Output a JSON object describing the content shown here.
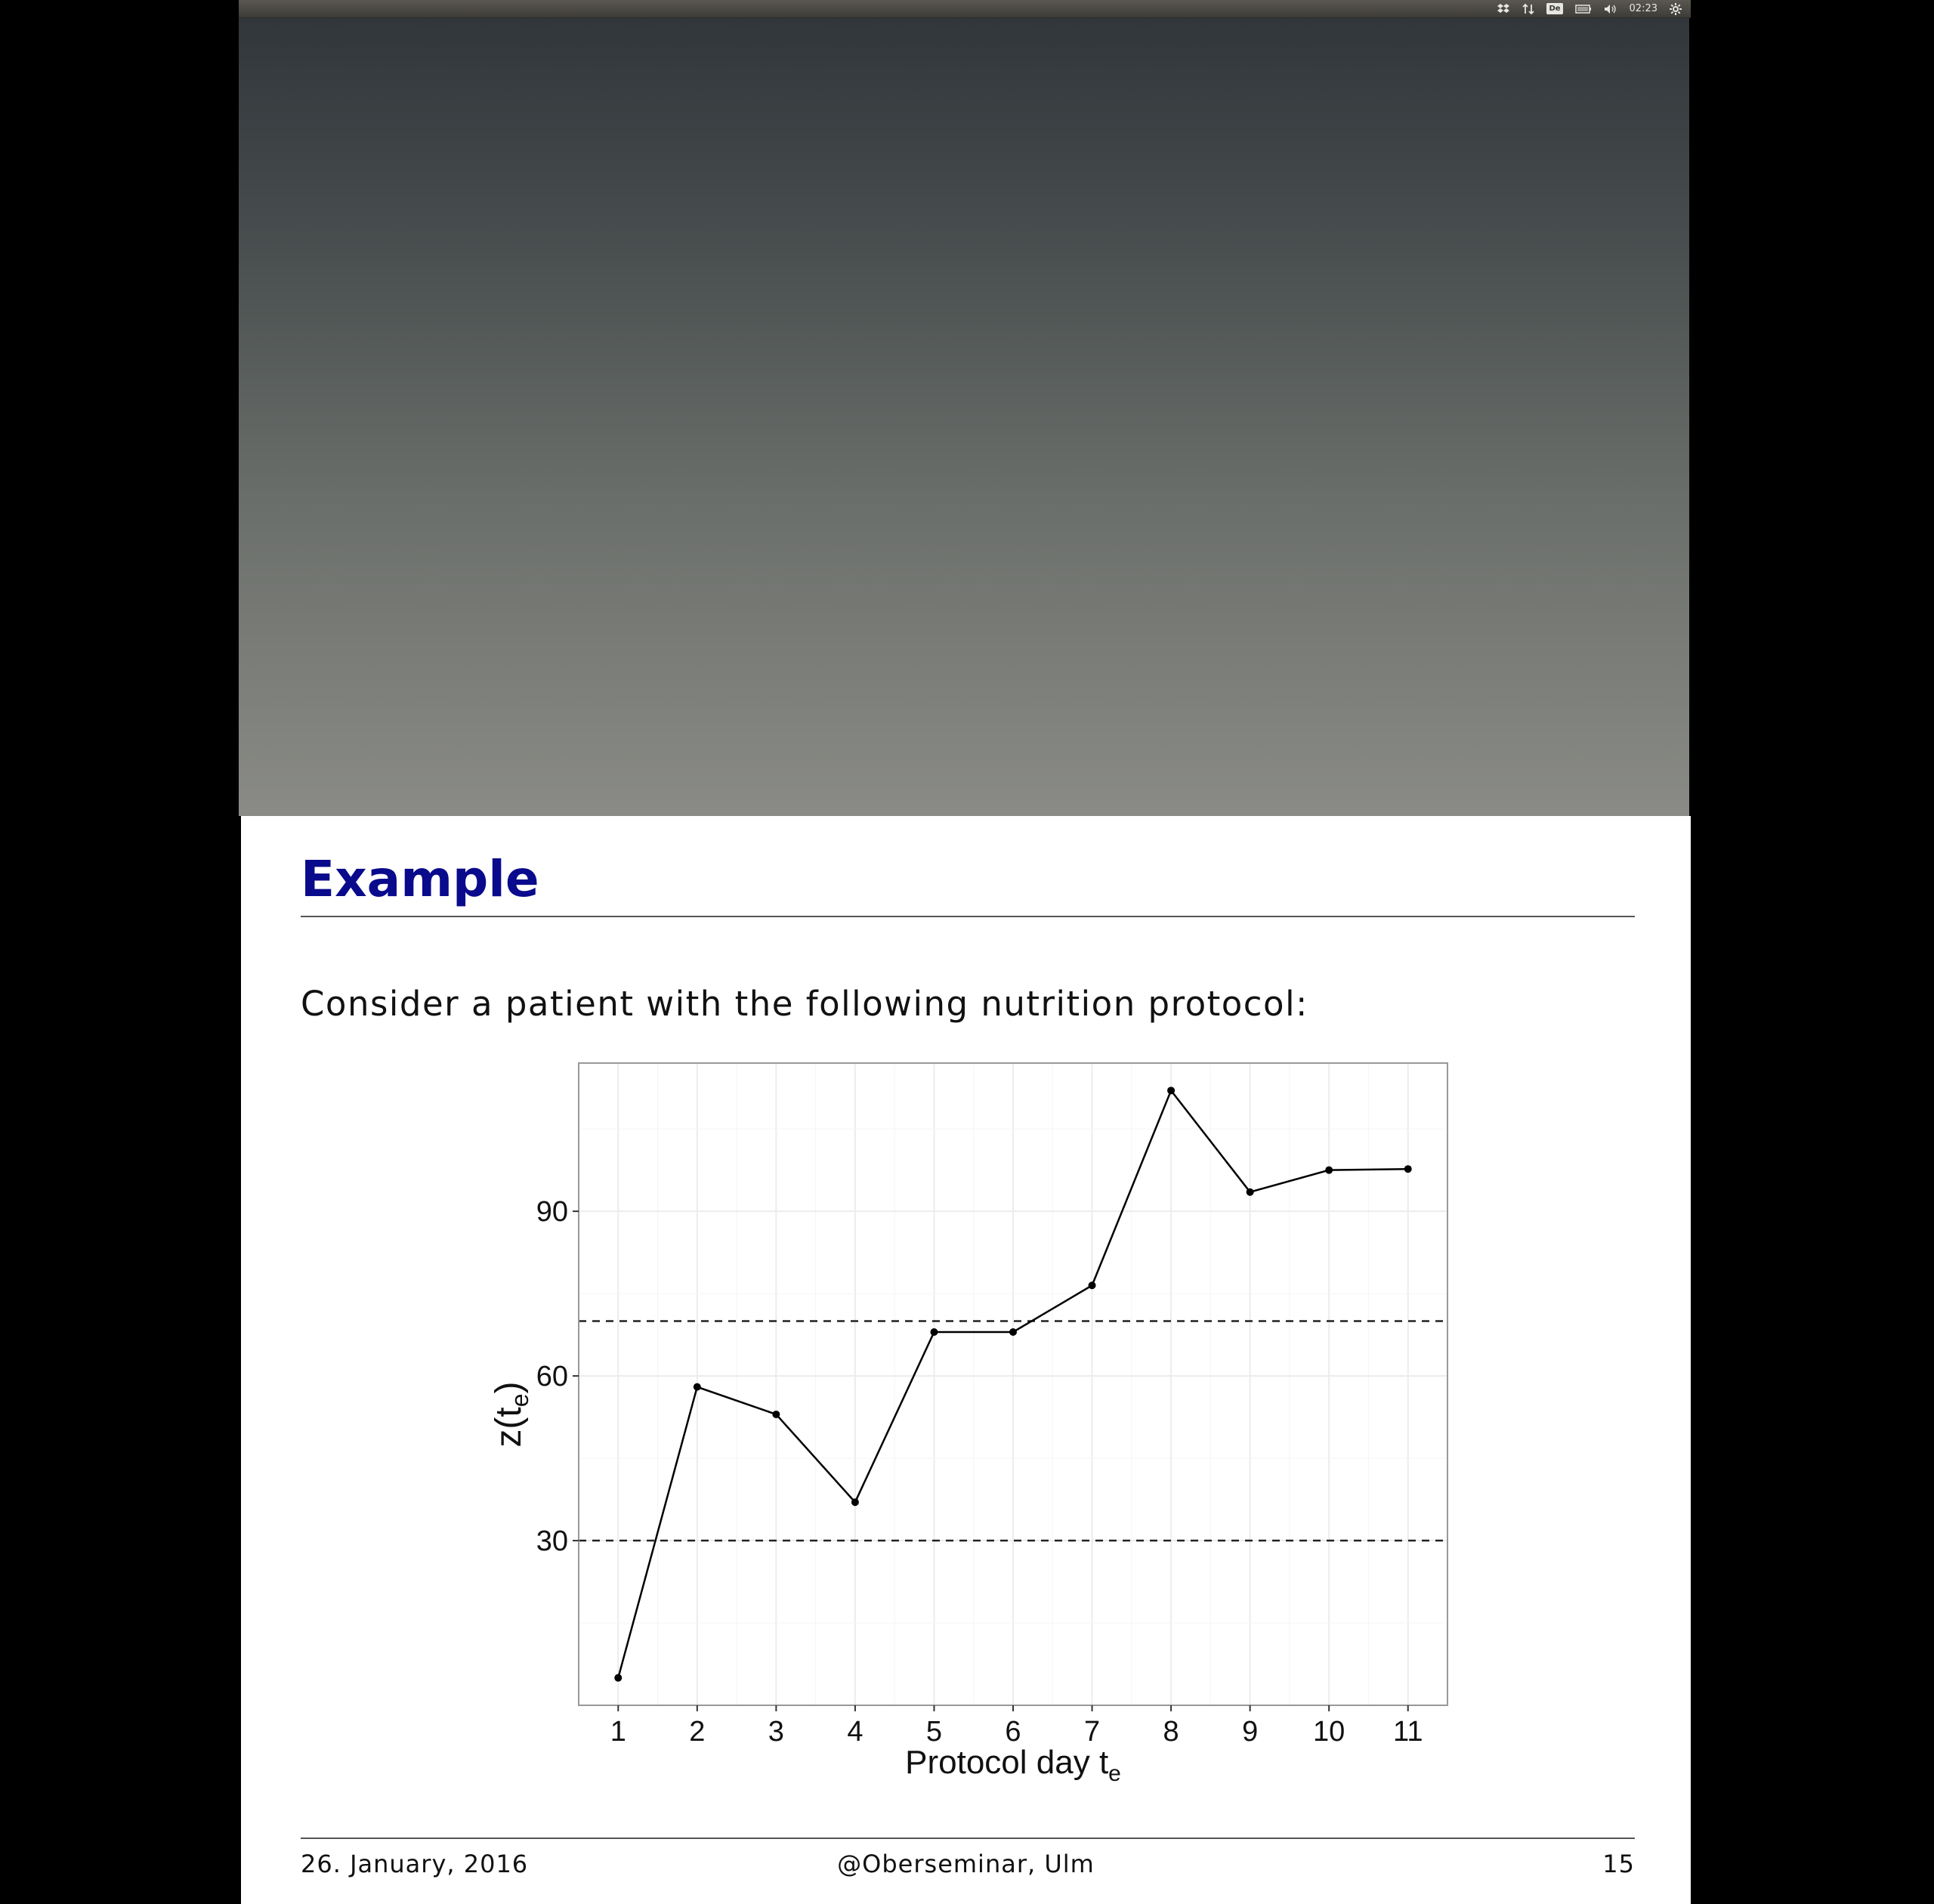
{
  "system_panel": {
    "clock": "02:23",
    "keyboard_layout": "De",
    "icons": [
      "dropbox-icon",
      "network-icon",
      "keyboard-layout-icon",
      "battery-icon",
      "volume-icon",
      "clock",
      "settings-gear-icon"
    ]
  },
  "slide": {
    "title": "Example",
    "text": "Consider a patient with the following nutrition protocol:",
    "title_color": "#0a0a8c",
    "footer": {
      "date": "26. January, 2016",
      "center": "@Oberseminar, Ulm",
      "page": "15"
    }
  },
  "chart_data": {
    "type": "line",
    "title": "",
    "xlabel": "Protocol day",
    "xlabel_subscript_var": "t",
    "xlabel_subscript": "e",
    "ylabel": "z(t",
    "ylabel_subscript": "e",
    "ylabel_suffix": ")",
    "x": [
      1,
      2,
      3,
      4,
      5,
      6,
      7,
      8,
      9,
      10,
      11
    ],
    "values": [
      5,
      58,
      53,
      37,
      68,
      68,
      76.5,
      112,
      93.5,
      97.5,
      97.7
    ],
    "xlim": [
      0.5,
      11.5
    ],
    "ylim": [
      0,
      117
    ],
    "xticks": [
      "1",
      "2",
      "3",
      "4",
      "5",
      "6",
      "7",
      "8",
      "9",
      "10",
      "11"
    ],
    "yticks": [
      30,
      60,
      90
    ],
    "ytick_labels": [
      "30",
      "60",
      "90"
    ],
    "reference_lines": [
      30,
      70
    ],
    "reference_line_style": "dashed",
    "grid": true,
    "legend": "none"
  }
}
